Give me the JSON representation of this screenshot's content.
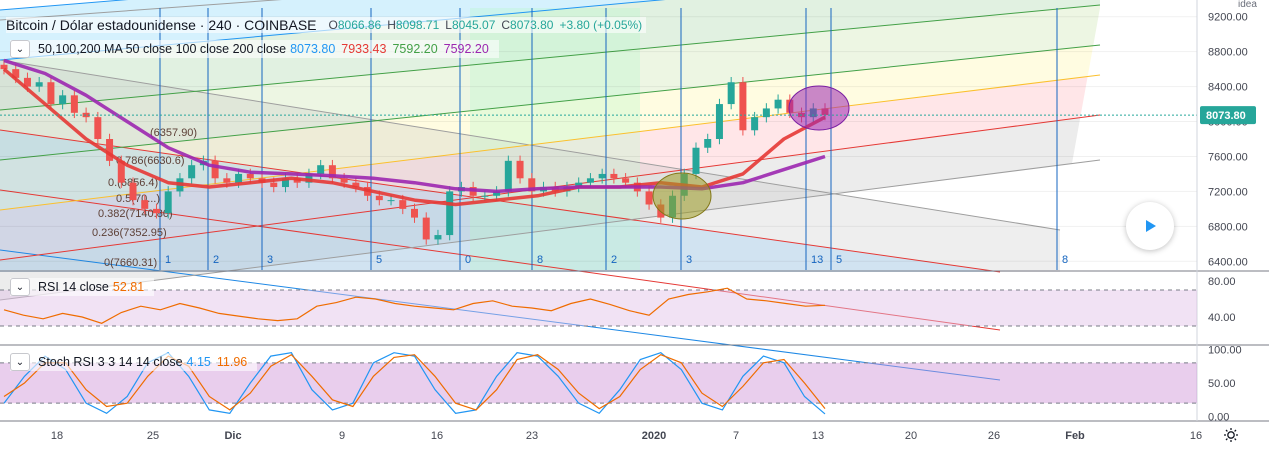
{
  "header": {
    "symbol": "Bitcoin / Dólar estadounidense · 240 · COINBASE",
    "o_label": "O",
    "o": "8066.86",
    "h_label": "H",
    "h": "8098.71",
    "l_label": "L",
    "l": "8045.07",
    "c_label": "C",
    "c": "8073.80",
    "change": "+3.80 (+0.05%)",
    "corner_label": "idea"
  },
  "ma_legend": {
    "label": "50,100,200 MA 50 close 100 close 200 close",
    "values": [
      "8073.80",
      "7933.43",
      "7592.20",
      "7592.20"
    ],
    "colors": [
      "#2196f3",
      "#e53935",
      "#43a047",
      "#9c27b0"
    ]
  },
  "rsi_legend": {
    "label": "RSI 14 close",
    "value": "52.81",
    "color": "#ef6c00"
  },
  "stoch_legend": {
    "label": "Stoch RSI 3 3 14 14 close",
    "k": "4.15",
    "d": "11.96",
    "k_color": "#2196f3",
    "d_color": "#ef6c00"
  },
  "price_axis": {
    "ticks": [
      "9200.00",
      "8800.00",
      "8400.00",
      "8000.00",
      "7600.00",
      "7200.00",
      "6800.00",
      "6400.00"
    ],
    "last_price": "8073.80"
  },
  "rsi_axis": {
    "ticks": [
      "80.00",
      "40.00"
    ]
  },
  "stoch_axis": {
    "ticks": [
      "100.00",
      "50.00",
      "0.00"
    ]
  },
  "time_axis": {
    "labels": [
      "18",
      "25",
      "Dic",
      "9",
      "16",
      "23",
      "2020",
      "7",
      "13",
      "20",
      "26",
      "Feb",
      "16"
    ]
  },
  "fib_labels": [
    "(6357.90)",
    "0.786(6630.6)",
    "0.(6856.4)",
    "0.5(70...)",
    "0.382(7140.80)",
    "0.236(7352.95)",
    "0(7660.31)"
  ],
  "cycle_labels": [
    "1",
    "2",
    "3",
    "5",
    "0",
    "8",
    "2",
    "3",
    "13",
    "5",
    "8"
  ],
  "icons": {
    "collapse": "chevron-down-icon",
    "play": "play-icon",
    "settings": "gear-icon"
  },
  "chart_data": [
    {
      "type": "line",
      "title": "Bitcoin / Dólar estadounidense · 240 · COINBASE",
      "series": [
        {
          "name": "MA 50",
          "color": "#e53935",
          "x": [
            0,
            10,
            20,
            30,
            40,
            50,
            60,
            70,
            80,
            90,
            100,
            110,
            120,
            130,
            140,
            150,
            160,
            170,
            180,
            190,
            200
          ],
          "values": [
            8600,
            8200,
            7800,
            7500,
            7300,
            7250,
            7300,
            7350,
            7300,
            7200,
            7100,
            7050,
            7100,
            7150,
            7250,
            7250,
            7300,
            7250,
            7400,
            7800,
            8050
          ]
        },
        {
          "name": "MA 100",
          "color": "#9c27b0",
          "x": [
            0,
            10,
            20,
            30,
            40,
            50,
            60,
            70,
            80,
            90,
            100,
            110,
            120,
            130,
            140,
            150,
            160,
            170,
            180,
            190,
            200
          ],
          "values": [
            8700,
            8550,
            8300,
            8000,
            7700,
            7500,
            7420,
            7400,
            7380,
            7350,
            7300,
            7230,
            7200,
            7230,
            7250,
            7250,
            7250,
            7230,
            7300,
            7450,
            7600
          ]
        }
      ],
      "candles_close": [
        8600,
        8500,
        8400,
        8450,
        8200,
        8300,
        8100,
        8050,
        7800,
        7550,
        7300,
        7100,
        7000,
        6950,
        7200,
        7350,
        7500,
        7550,
        7350,
        7300,
        7400,
        7350,
        7300,
        7250,
        7350,
        7300,
        7400,
        7500,
        7350,
        7300,
        7250,
        7150,
        7100,
        7100,
        7000,
        6900,
        6650,
        6700,
        7200,
        7250,
        7150,
        7150,
        7200,
        7550,
        7350,
        7200,
        7250,
        7200,
        7250,
        7300,
        7350,
        7400,
        7350,
        7300,
        7200,
        7050,
        6900,
        7150,
        7400,
        7700,
        7800,
        8200,
        8450,
        7900,
        8050,
        8150,
        8250,
        8100,
        8050,
        8150,
        8074
      ],
      "ylim": [
        6400,
        9200
      ]
    },
    {
      "type": "line",
      "title": "RSI 14 close",
      "series": [
        {
          "name": "RSI",
          "color": "#ef6c00",
          "values": [
            48,
            42,
            38,
            44,
            40,
            33,
            45,
            52,
            48,
            55,
            50,
            44,
            41,
            38,
            36,
            38,
            52,
            56,
            62,
            60,
            55,
            52,
            50,
            48,
            55,
            58,
            52,
            50,
            47,
            55,
            60,
            54,
            47,
            42,
            60,
            65,
            68,
            72,
            60,
            58,
            55,
            52,
            53
          ]
        }
      ],
      "ylim": [
        20,
        80
      ]
    },
    {
      "type": "line",
      "title": "Stoch RSI 3 3 14 14 close",
      "series": [
        {
          "name": "K",
          "color": "#2196f3",
          "values": [
            20,
            60,
            90,
            70,
            20,
            5,
            30,
            80,
            95,
            60,
            10,
            5,
            50,
            90,
            95,
            40,
            10,
            20,
            80,
            95,
            90,
            40,
            5,
            10,
            60,
            95,
            90,
            60,
            20,
            5,
            40,
            85,
            95,
            70,
            20,
            10,
            60,
            90,
            80,
            30,
            4
          ]
        },
        {
          "name": "D",
          "color": "#ef6c00",
          "values": [
            30,
            50,
            80,
            80,
            40,
            15,
            20,
            60,
            90,
            75,
            30,
            10,
            35,
            75,
            92,
            60,
            25,
            15,
            60,
            88,
            92,
            60,
            20,
            10,
            40,
            85,
            92,
            70,
            35,
            12,
            30,
            70,
            92,
            80,
            35,
            15,
            45,
            80,
            85,
            50,
            12
          ]
        }
      ],
      "ylim": [
        0,
        100
      ]
    }
  ]
}
